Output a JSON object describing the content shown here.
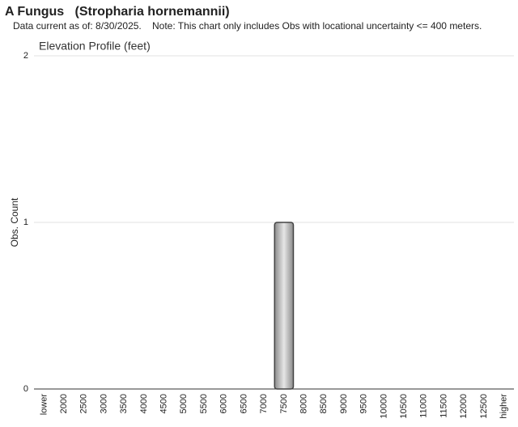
{
  "header": {
    "title": "A Fungus   (Stropharia hornemannii)",
    "date_note": "Data current as of: 8/30/2025.",
    "note": "Note: This chart only includes Obs with locational uncertainty <= 400 meters."
  },
  "chart_data": {
    "type": "bar",
    "title": "Elevation Profile (feet)",
    "y_label": "Obs. Count",
    "categories": [
      "lower",
      "2000",
      "2500",
      "3000",
      "3500",
      "4000",
      "4500",
      "5000",
      "5500",
      "6000",
      "6500",
      "7000",
      "7500",
      "8000",
      "8500",
      "9000",
      "9500",
      "10000",
      "10500",
      "11000",
      "11500",
      "12000",
      "12500",
      "higher"
    ],
    "values": [
      0,
      0,
      0,
      0,
      0,
      0,
      0,
      0,
      0,
      0,
      0,
      0,
      1,
      0,
      0,
      0,
      0,
      0,
      0,
      0,
      0,
      0,
      0,
      0
    ],
    "ylim": [
      0,
      2
    ],
    "yticks": [
      0,
      1,
      2
    ],
    "grid": true
  }
}
